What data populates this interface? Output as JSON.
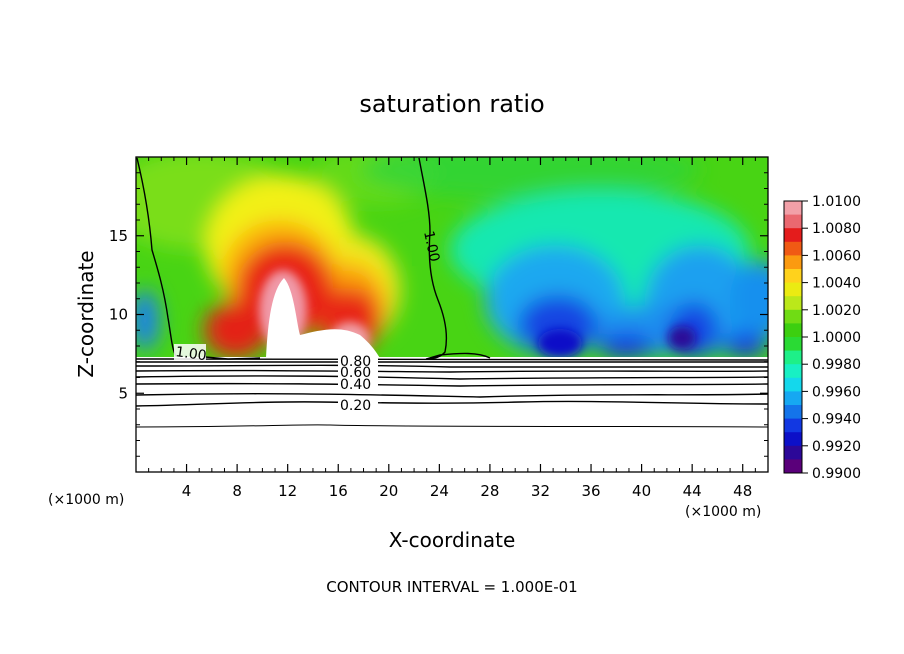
{
  "chart_data": {
    "type": "contour",
    "title": "saturation ratio",
    "xlabel": "X-coordinate",
    "ylabel": "Z-coordinate",
    "x_units": "(×1000 m)",
    "z_units": "(×1000 m)",
    "xlim": [
      0,
      50
    ],
    "ylim": [
      0,
      20
    ],
    "x_ticks": [
      "4",
      "8",
      "12",
      "16",
      "20",
      "24",
      "28",
      "32",
      "36",
      "40",
      "44",
      "48"
    ],
    "y_ticks": [
      "5",
      "10",
      "15"
    ],
    "footnote": "CONTOUR INTERVAL = 1.000E-01",
    "colorbar": {
      "labels": [
        "1.0100",
        "1.0080",
        "1.0060",
        "1.0040",
        "1.0020",
        "1.0000",
        "0.9980",
        "0.9960",
        "0.9940",
        "0.9920",
        "0.9900"
      ],
      "colors": [
        "#f2a0a8",
        "#ea6870",
        "#e41c1c",
        "#f05a14",
        "#fb9a10",
        "#ffd21c",
        "#ebeb12",
        "#bbe81a",
        "#70dc14",
        "#3ccf10",
        "#2ada34",
        "#1ef088",
        "#18f0c4",
        "#14d8ec",
        "#16a8f2",
        "#1474ea",
        "#1238e2",
        "#0c10c8",
        "#2c0898",
        "#5a007a"
      ]
    },
    "contours": [
      {
        "label": "1.00",
        "path": [
          [
            0.6,
            19.9
          ],
          [
            1.5,
            16
          ],
          [
            1.8,
            11
          ],
          [
            2.6,
            9
          ],
          [
            3.0,
            8.2
          ],
          [
            4.5,
            7.4
          ],
          [
            6.5,
            7.3
          ]
        ]
      },
      {
        "label": "1.00",
        "path": [
          [
            25.1,
            19.9
          ],
          [
            25.3,
            16
          ],
          [
            24.2,
            11
          ],
          [
            23.3,
            8.2
          ],
          [
            22.6,
            7.4
          ],
          [
            24.4,
            7.7
          ],
          [
            27.3,
            7.5
          ]
        ]
      },
      {
        "label": "0.80",
        "path": [
          [
            0,
            7.2
          ],
          [
            50,
            7.2
          ]
        ]
      },
      {
        "label": "0.60",
        "path": [
          [
            0,
            6.5
          ],
          [
            50,
            6.6
          ]
        ]
      },
      {
        "label": "0.40",
        "path": [
          [
            0,
            5.6
          ],
          [
            50,
            5.7
          ]
        ]
      },
      {
        "label": "0.20",
        "path": [
          [
            0,
            4.3
          ],
          [
            50,
            4.4
          ]
        ]
      },
      {
        "label": "",
        "path": [
          [
            0,
            2.9
          ],
          [
            50,
            2.9
          ]
        ]
      }
    ],
    "contour_labels": [
      {
        "text": "1.00",
        "x": 25.2,
        "z": 14.3,
        "rotate": 80
      },
      {
        "text": "1.00",
        "x": 4.3,
        "z": 7.6,
        "rotate": 5
      },
      {
        "text": "0.80",
        "x": 17.4,
        "z": 7.1,
        "rotate": 0
      },
      {
        "text": "0.60",
        "x": 17.4,
        "z": 6.4,
        "rotate": 0
      },
      {
        "text": "0.40",
        "x": 17.4,
        "z": 5.5,
        "rotate": 0
      },
      {
        "text": "0.20",
        "x": 17.4,
        "z": 4.2,
        "rotate": 0
      }
    ]
  }
}
